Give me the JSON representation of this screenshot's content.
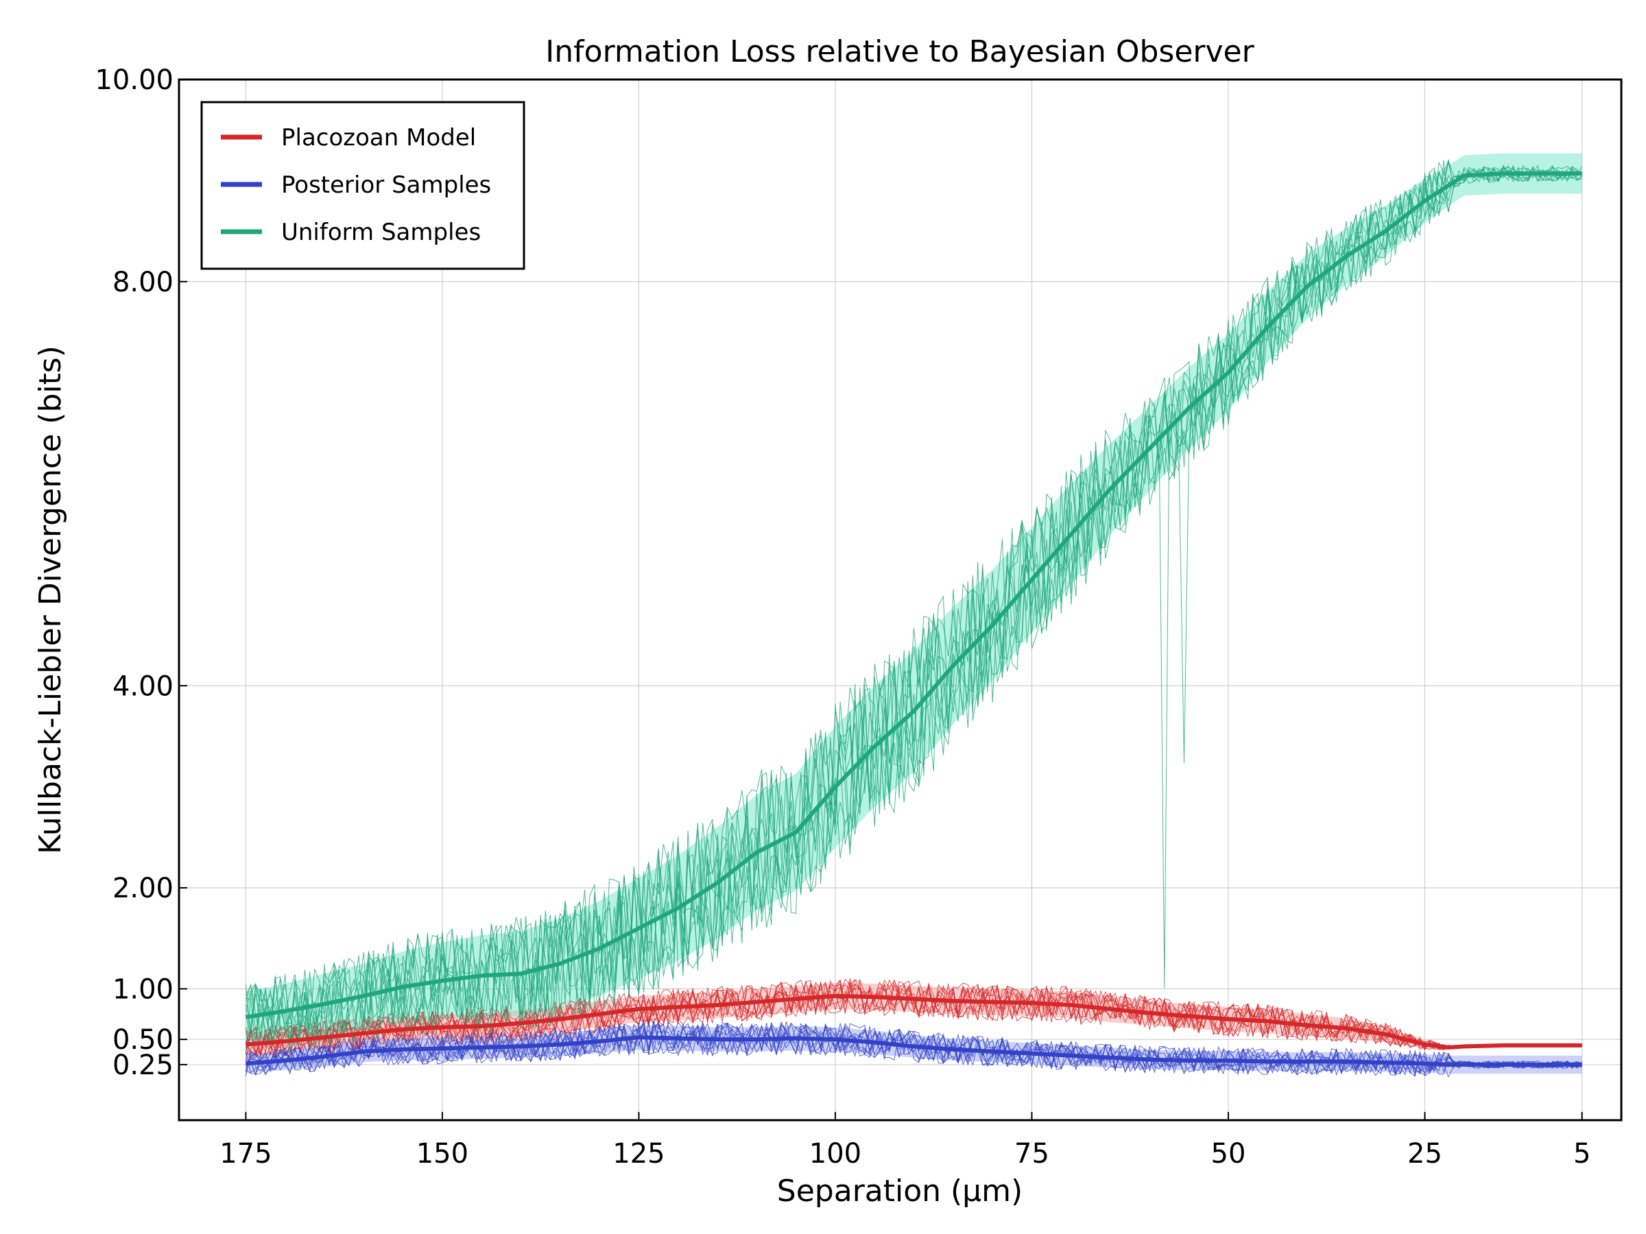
{
  "chart_data": {
    "type": "line",
    "title": "Information Loss relative to Bayesian Observer",
    "xlabel": "Separation (µm)",
    "ylabel": "Kullback-Liebler Divergence (bits)",
    "x_ticks": [
      175,
      150,
      125,
      100,
      75,
      50,
      25,
      5
    ],
    "x_tick_labels": [
      "175",
      "150",
      "125",
      "100",
      "75",
      "50",
      "25",
      "5"
    ],
    "y_ticks": [
      0.25,
      0.5,
      1,
      2,
      4,
      8,
      10
    ],
    "y_tick_labels": [
      "0.25",
      "0.50",
      "1.00",
      "2.00",
      "4.00",
      "8.00",
      "10.00"
    ],
    "xlim": [
      183.5,
      0
    ],
    "ylim": [
      -0.3,
      10
    ],
    "x_axis_reversed": true,
    "grid": true,
    "legend_position": "top-left",
    "x": [
      175,
      170,
      165,
      160,
      155,
      150,
      145,
      140,
      135,
      130,
      125,
      120,
      115,
      110,
      105,
      100,
      95,
      90,
      85,
      80,
      75,
      70,
      65,
      60,
      55,
      50,
      45,
      40,
      35,
      30,
      25,
      22,
      20,
      15,
      10,
      5
    ],
    "series": [
      {
        "name": "Placozoan Model",
        "color": "#d62728",
        "band_color": "#f4a6a6",
        "values": [
          0.45,
          0.48,
          0.52,
          0.56,
          0.6,
          0.62,
          0.63,
          0.66,
          0.7,
          0.75,
          0.8,
          0.82,
          0.84,
          0.87,
          0.9,
          0.93,
          0.92,
          0.9,
          0.88,
          0.87,
          0.86,
          0.84,
          0.8,
          0.76,
          0.73,
          0.7,
          0.68,
          0.64,
          0.61,
          0.55,
          0.45,
          0.42,
          0.43,
          0.44,
          0.44,
          0.44
        ],
        "band_half_width": [
          0.12,
          0.12,
          0.12,
          0.12,
          0.12,
          0.12,
          0.13,
          0.13,
          0.13,
          0.13,
          0.13,
          0.13,
          0.13,
          0.13,
          0.13,
          0.13,
          0.13,
          0.13,
          0.13,
          0.13,
          0.13,
          0.13,
          0.13,
          0.12,
          0.12,
          0.12,
          0.12,
          0.11,
          0.1,
          0.08,
          0.04,
          0.02,
          0.02,
          0.02,
          0.02,
          0.02
        ]
      },
      {
        "name": "Posterior Samples",
        "color": "#3242c8",
        "band_color": "#a3abf0",
        "values": [
          0.26,
          0.29,
          0.33,
          0.38,
          0.4,
          0.41,
          0.42,
          0.43,
          0.45,
          0.48,
          0.52,
          0.51,
          0.5,
          0.5,
          0.51,
          0.5,
          0.47,
          0.43,
          0.4,
          0.38,
          0.36,
          0.34,
          0.32,
          0.3,
          0.29,
          0.29,
          0.28,
          0.28,
          0.28,
          0.27,
          0.26,
          0.25,
          0.25,
          0.25,
          0.25,
          0.25
        ]
      },
      {
        "name": "Uniform Samples",
        "color": "#1fa77a",
        "band_color": "#7ee8c8",
        "values": [
          0.72,
          0.78,
          0.85,
          0.93,
          1.02,
          1.08,
          1.13,
          1.15,
          1.25,
          1.4,
          1.6,
          1.8,
          2.05,
          2.35,
          2.55,
          3.0,
          3.4,
          3.75,
          4.2,
          4.6,
          5.05,
          5.5,
          5.95,
          6.35,
          6.75,
          7.1,
          7.55,
          7.95,
          8.25,
          8.5,
          8.8,
          8.95,
          9.05,
          9.07,
          9.07,
          9.07
        ],
        "band_half_width": [
          0.25,
          0.27,
          0.3,
          0.32,
          0.35,
          0.38,
          0.4,
          0.42,
          0.45,
          0.47,
          0.5,
          0.52,
          0.55,
          0.57,
          0.58,
          0.6,
          0.6,
          0.6,
          0.58,
          0.55,
          0.52,
          0.5,
          0.45,
          0.42,
          0.4,
          0.38,
          0.35,
          0.32,
          0.28,
          0.25,
          0.22,
          0.2,
          0.2,
          0.2,
          0.2,
          0.2
        ]
      }
    ]
  }
}
